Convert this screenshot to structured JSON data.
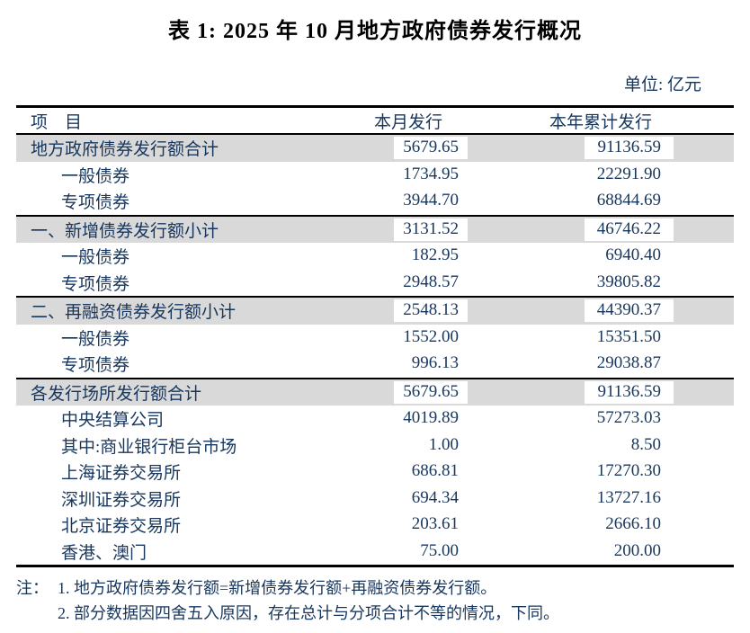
{
  "title": "表 1: 2025 年 10 月地方政府债券发行概况",
  "unit_label": "单位: 亿元",
  "colors": {
    "text": "#17365D",
    "title_text": "#000000",
    "shaded_row_bg": "#D9D9D9",
    "border": "#000000",
    "background": "#FFFFFF"
  },
  "table": {
    "headers": {
      "item": "项　目",
      "month": "本月发行",
      "ytd": "本年累计发行"
    },
    "rows": [
      {
        "item": "地方政府债券发行额合计",
        "month": "5679.65",
        "ytd": "91136.59",
        "shaded": true,
        "divider": false,
        "indent": 0
      },
      {
        "item": "一般债券",
        "month": "1734.95",
        "ytd": "22291.90",
        "shaded": false,
        "divider": false,
        "indent": 1
      },
      {
        "item": "专项债券",
        "month": "3944.70",
        "ytd": "68844.69",
        "shaded": false,
        "divider": false,
        "indent": 1
      },
      {
        "item": "一、新增债券发行额小计",
        "month": "3131.52",
        "ytd": "46746.22",
        "shaded": true,
        "divider": true,
        "indent": 0
      },
      {
        "item": "一般债券",
        "month": "182.95",
        "ytd": "6940.40",
        "shaded": false,
        "divider": false,
        "indent": 1
      },
      {
        "item": "专项债券",
        "month": "2948.57",
        "ytd": "39805.82",
        "shaded": false,
        "divider": false,
        "indent": 1
      },
      {
        "item": "二、再融资债券发行额小计",
        "month": "2548.13",
        "ytd": "44390.37",
        "shaded": true,
        "divider": true,
        "indent": 0
      },
      {
        "item": "一般债券",
        "month": "1552.00",
        "ytd": "15351.50",
        "shaded": false,
        "divider": false,
        "indent": 1
      },
      {
        "item": "专项债券",
        "month": "996.13",
        "ytd": "29038.87",
        "shaded": false,
        "divider": false,
        "indent": 1
      },
      {
        "item": "各发行场所发行额合计",
        "month": "5679.65",
        "ytd": "91136.59",
        "shaded": true,
        "divider": true,
        "indent": 0
      },
      {
        "item": "中央结算公司",
        "month": "4019.89",
        "ytd": "57273.03",
        "shaded": false,
        "divider": false,
        "indent": 1
      },
      {
        "item": "其中:商业银行柜台市场",
        "month": "1.00",
        "ytd": "8.50",
        "shaded": false,
        "divider": false,
        "indent": 1
      },
      {
        "item": "上海证券交易所",
        "month": "686.81",
        "ytd": "17270.30",
        "shaded": false,
        "divider": false,
        "indent": 1
      },
      {
        "item": "深圳证券交易所",
        "month": "694.34",
        "ytd": "13727.16",
        "shaded": false,
        "divider": false,
        "indent": 1
      },
      {
        "item": "北京证券交易所",
        "month": "203.61",
        "ytd": "2666.10",
        "shaded": false,
        "divider": false,
        "indent": 1
      },
      {
        "item": "香港、澳门",
        "month": "75.00",
        "ytd": "200.00",
        "shaded": false,
        "divider": false,
        "indent": 1
      }
    ]
  },
  "notes": {
    "prefix": "注：",
    "lines": [
      "1. 地方政府债券发行额=新增债券发行额+再融资债券发行额。",
      "2. 部分数据因四舍五入原因，存在总计与分项合计不等的情况，下同。"
    ]
  }
}
